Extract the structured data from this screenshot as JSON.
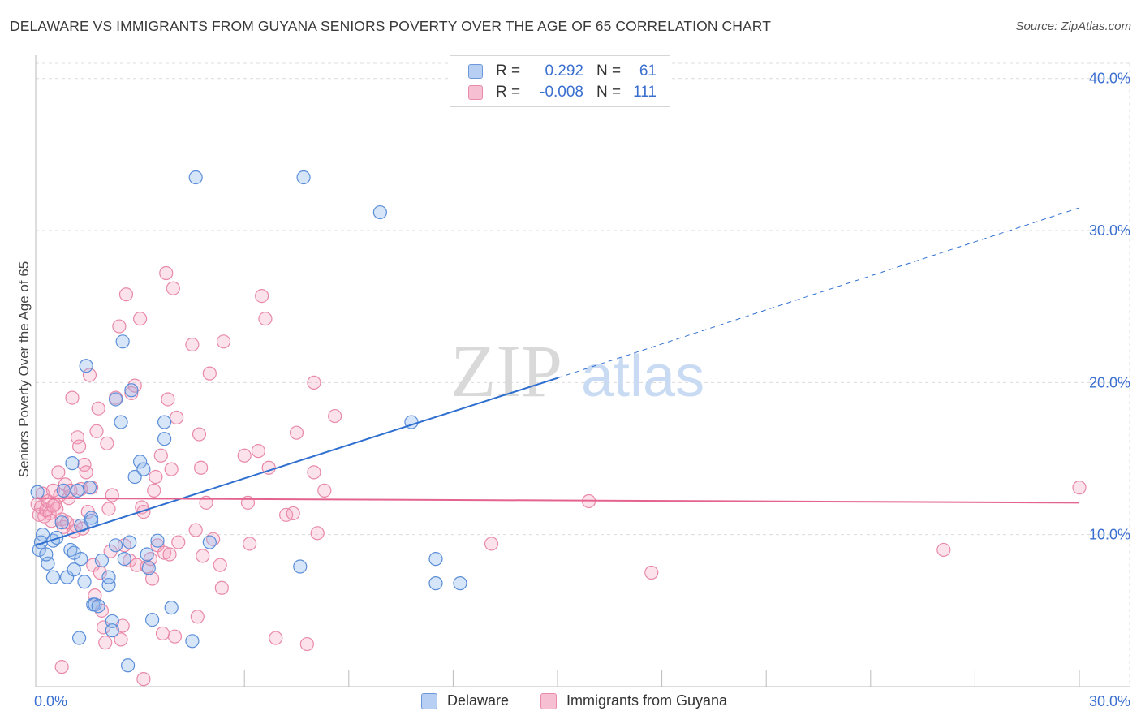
{
  "title": "DELAWARE VS IMMIGRANTS FROM GUYANA SENIORS POVERTY OVER THE AGE OF 65 CORRELATION CHART",
  "source": "Source: ZipAtlas.com",
  "watermark": {
    "part1": "ZIP",
    "part2": "atlas"
  },
  "legend": {
    "rows": [
      {
        "r_label": "R =",
        "r_value": "0.292",
        "n_label": "N =",
        "n_value": "61",
        "fill": "#b7cff2",
        "stroke": "#6e98dc"
      },
      {
        "r_label": "R =",
        "r_value": "-0.008",
        "n_label": "N =",
        "n_value": "111",
        "fill": "#f7c0d2",
        "stroke": "#e889a8"
      }
    ]
  },
  "bottom_legend": {
    "items": [
      {
        "label": "Delaware",
        "fill": "#b7cff2",
        "stroke": "#6e98dc"
      },
      {
        "label": "Immigrants from Guyana",
        "fill": "#f7c0d2",
        "stroke": "#e889a8"
      }
    ]
  },
  "colors": {
    "delaware_fill": "rgba(140,180,235,0.35)",
    "delaware_stroke": "#5b8ed8",
    "delaware_line": "#2f6fd0",
    "guyana_fill": "rgba(245,160,190,0.30)",
    "guyana_stroke": "#e889a8",
    "guyana_line": "#e4648f",
    "grid": "#dcdcdc",
    "tick_label": "#3a6fd0"
  },
  "chart_data": {
    "type": "scatter",
    "title": "DELAWARE VS IMMIGRANTS FROM GUYANA SENIORS POVERTY OVER THE AGE OF 65 CORRELATION CHART",
    "xlabel": "",
    "ylabel": "Seniors Poverty Over the Age of 65",
    "xlim": [
      0,
      30
    ],
    "ylim": [
      0,
      41
    ],
    "x_tick_labels": [
      {
        "value": 0,
        "label": "0.0%"
      },
      {
        "value": 30,
        "label": "30.0%"
      }
    ],
    "y_tick_labels": [
      {
        "value": 10,
        "label": "10.0%"
      },
      {
        "value": 20,
        "label": "20.0%"
      },
      {
        "value": 30,
        "label": "30.0%"
      },
      {
        "value": 40,
        "label": "40.0%"
      }
    ],
    "grid": true,
    "legend_position": "top-center",
    "series": [
      {
        "name": "Delaware",
        "trend": {
          "x0": 0,
          "y0": 9.3,
          "x1": 15,
          "y1": 20.3,
          "dashed_to_x": 30,
          "dashed_to_y": 31.5
        },
        "points": [
          [
            0.05,
            12.8
          ],
          [
            0.1,
            9.0
          ],
          [
            0.2,
            10.0
          ],
          [
            0.35,
            8.1
          ],
          [
            0.5,
            9.6
          ],
          [
            0.5,
            7.2
          ],
          [
            0.6,
            9.8
          ],
          [
            0.75,
            10.8
          ],
          [
            0.8,
            12.9
          ],
          [
            0.9,
            7.2
          ],
          [
            1.0,
            9.0
          ],
          [
            1.05,
            14.7
          ],
          [
            1.1,
            8.8
          ],
          [
            1.1,
            7.7
          ],
          [
            1.2,
            12.9
          ],
          [
            1.25,
            3.2
          ],
          [
            1.3,
            8.4
          ],
          [
            1.3,
            10.6
          ],
          [
            1.4,
            6.9
          ],
          [
            1.45,
            21.1
          ],
          [
            1.55,
            13.1
          ],
          [
            1.6,
            11.1
          ],
          [
            1.6,
            10.9
          ],
          [
            1.65,
            5.4
          ],
          [
            1.7,
            5.4
          ],
          [
            1.8,
            5.3
          ],
          [
            1.9,
            8.3
          ],
          [
            2.1,
            6.7
          ],
          [
            2.1,
            7.2
          ],
          [
            2.2,
            4.3
          ],
          [
            2.2,
            3.7
          ],
          [
            2.3,
            9.3
          ],
          [
            2.3,
            18.9
          ],
          [
            2.45,
            17.4
          ],
          [
            2.5,
            22.7
          ],
          [
            2.55,
            8.4
          ],
          [
            2.65,
            1.4
          ],
          [
            2.7,
            9.5
          ],
          [
            2.75,
            19.5
          ],
          [
            2.85,
            13.8
          ],
          [
            3.0,
            14.8
          ],
          [
            3.1,
            14.3
          ],
          [
            3.2,
            8.7
          ],
          [
            3.25,
            7.8
          ],
          [
            3.35,
            4.4
          ],
          [
            3.5,
            9.6
          ],
          [
            3.7,
            16.3
          ],
          [
            3.7,
            17.4
          ],
          [
            3.9,
            5.2
          ],
          [
            4.5,
            3.0
          ],
          [
            4.6,
            33.5
          ],
          [
            5.0,
            9.5
          ],
          [
            7.6,
            7.9
          ],
          [
            7.7,
            33.5
          ],
          [
            10.8,
            17.4
          ],
          [
            9.9,
            31.2
          ],
          [
            11.5,
            8.4
          ],
          [
            11.5,
            6.8
          ],
          [
            12.2,
            6.8
          ],
          [
            0.3,
            8.7
          ],
          [
            0.15,
            9.5
          ]
        ]
      },
      {
        "name": "Immigrants from Guyana",
        "trend": {
          "x0": 0,
          "y0": 12.4,
          "x1": 30,
          "y1": 12.1
        },
        "points": [
          [
            0.05,
            12.0
          ],
          [
            0.1,
            11.3
          ],
          [
            0.15,
            11.8
          ],
          [
            0.2,
            12.7
          ],
          [
            0.25,
            11.2
          ],
          [
            0.3,
            11.6
          ],
          [
            0.35,
            12.2
          ],
          [
            0.4,
            11.4
          ],
          [
            0.45,
            10.9
          ],
          [
            0.5,
            12.9
          ],
          [
            0.55,
            12.0
          ],
          [
            0.6,
            11.7
          ],
          [
            0.65,
            14.1
          ],
          [
            0.7,
            12.6
          ],
          [
            0.75,
            11.0
          ],
          [
            0.8,
            10.5
          ],
          [
            0.85,
            13.3
          ],
          [
            0.9,
            10.8
          ],
          [
            0.95,
            12.4
          ],
          [
            1.0,
            12.9
          ],
          [
            1.05,
            19.0
          ],
          [
            1.1,
            10.2
          ],
          [
            1.15,
            10.6
          ],
          [
            1.2,
            16.4
          ],
          [
            1.25,
            15.8
          ],
          [
            1.3,
            13.0
          ],
          [
            1.35,
            10.4
          ],
          [
            1.4,
            14.6
          ],
          [
            1.45,
            14.1
          ],
          [
            1.5,
            11.5
          ],
          [
            1.55,
            20.5
          ],
          [
            1.6,
            13.1
          ],
          [
            1.65,
            8.0
          ],
          [
            1.7,
            6.0
          ],
          [
            1.75,
            16.8
          ],
          [
            1.8,
            18.3
          ],
          [
            1.85,
            7.5
          ],
          [
            1.9,
            5.0
          ],
          [
            1.95,
            3.9
          ],
          [
            2.0,
            2.9
          ],
          [
            2.05,
            16.0
          ],
          [
            2.1,
            11.7
          ],
          [
            2.15,
            8.9
          ],
          [
            2.2,
            12.6
          ],
          [
            2.3,
            19.0
          ],
          [
            2.4,
            23.7
          ],
          [
            2.45,
            3.1
          ],
          [
            2.5,
            4.0
          ],
          [
            2.55,
            9.3
          ],
          [
            2.6,
            25.8
          ],
          [
            2.7,
            8.3
          ],
          [
            2.75,
            19.3
          ],
          [
            2.85,
            19.8
          ],
          [
            2.9,
            8.0
          ],
          [
            3.0,
            24.2
          ],
          [
            3.05,
            11.8
          ],
          [
            3.1,
            11.5
          ],
          [
            3.2,
            7.9
          ],
          [
            3.3,
            8.4
          ],
          [
            3.35,
            7.1
          ],
          [
            3.4,
            12.9
          ],
          [
            3.45,
            13.8
          ],
          [
            3.5,
            9.3
          ],
          [
            3.6,
            15.2
          ],
          [
            3.65,
            3.5
          ],
          [
            3.7,
            8.8
          ],
          [
            3.75,
            27.2
          ],
          [
            3.8,
            18.9
          ],
          [
            3.85,
            8.7
          ],
          [
            3.9,
            14.3
          ],
          [
            3.95,
            26.2
          ],
          [
            4.0,
            3.3
          ],
          [
            4.05,
            17.7
          ],
          [
            4.1,
            9.5
          ],
          [
            4.5,
            22.5
          ],
          [
            4.6,
            10.3
          ],
          [
            4.65,
            4.6
          ],
          [
            4.7,
            16.6
          ],
          [
            4.75,
            14.4
          ],
          [
            4.8,
            8.6
          ],
          [
            4.9,
            12.1
          ],
          [
            5.0,
            20.6
          ],
          [
            5.1,
            9.7
          ],
          [
            5.3,
            8.0
          ],
          [
            5.35,
            6.5
          ],
          [
            5.4,
            22.7
          ],
          [
            6.0,
            15.2
          ],
          [
            6.1,
            12.1
          ],
          [
            6.15,
            9.4
          ],
          [
            6.4,
            15.5
          ],
          [
            6.5,
            25.7
          ],
          [
            6.6,
            24.2
          ],
          [
            6.7,
            14.4
          ],
          [
            6.9,
            3.2
          ],
          [
            7.2,
            11.3
          ],
          [
            7.4,
            11.4
          ],
          [
            7.5,
            16.7
          ],
          [
            7.8,
            2.8
          ],
          [
            8.0,
            20.0
          ],
          [
            8.1,
            10.1
          ],
          [
            8.3,
            12.9
          ],
          [
            8.6,
            17.8
          ],
          [
            8.0,
            14.1
          ],
          [
            13.1,
            9.4
          ],
          [
            15.9,
            12.2
          ],
          [
            17.7,
            7.5
          ],
          [
            26.1,
            9.0
          ],
          [
            30.0,
            13.1
          ],
          [
            0.75,
            1.3
          ],
          [
            3.1,
            0.5
          ],
          [
            0.5,
            11.9
          ]
        ]
      }
    ]
  }
}
